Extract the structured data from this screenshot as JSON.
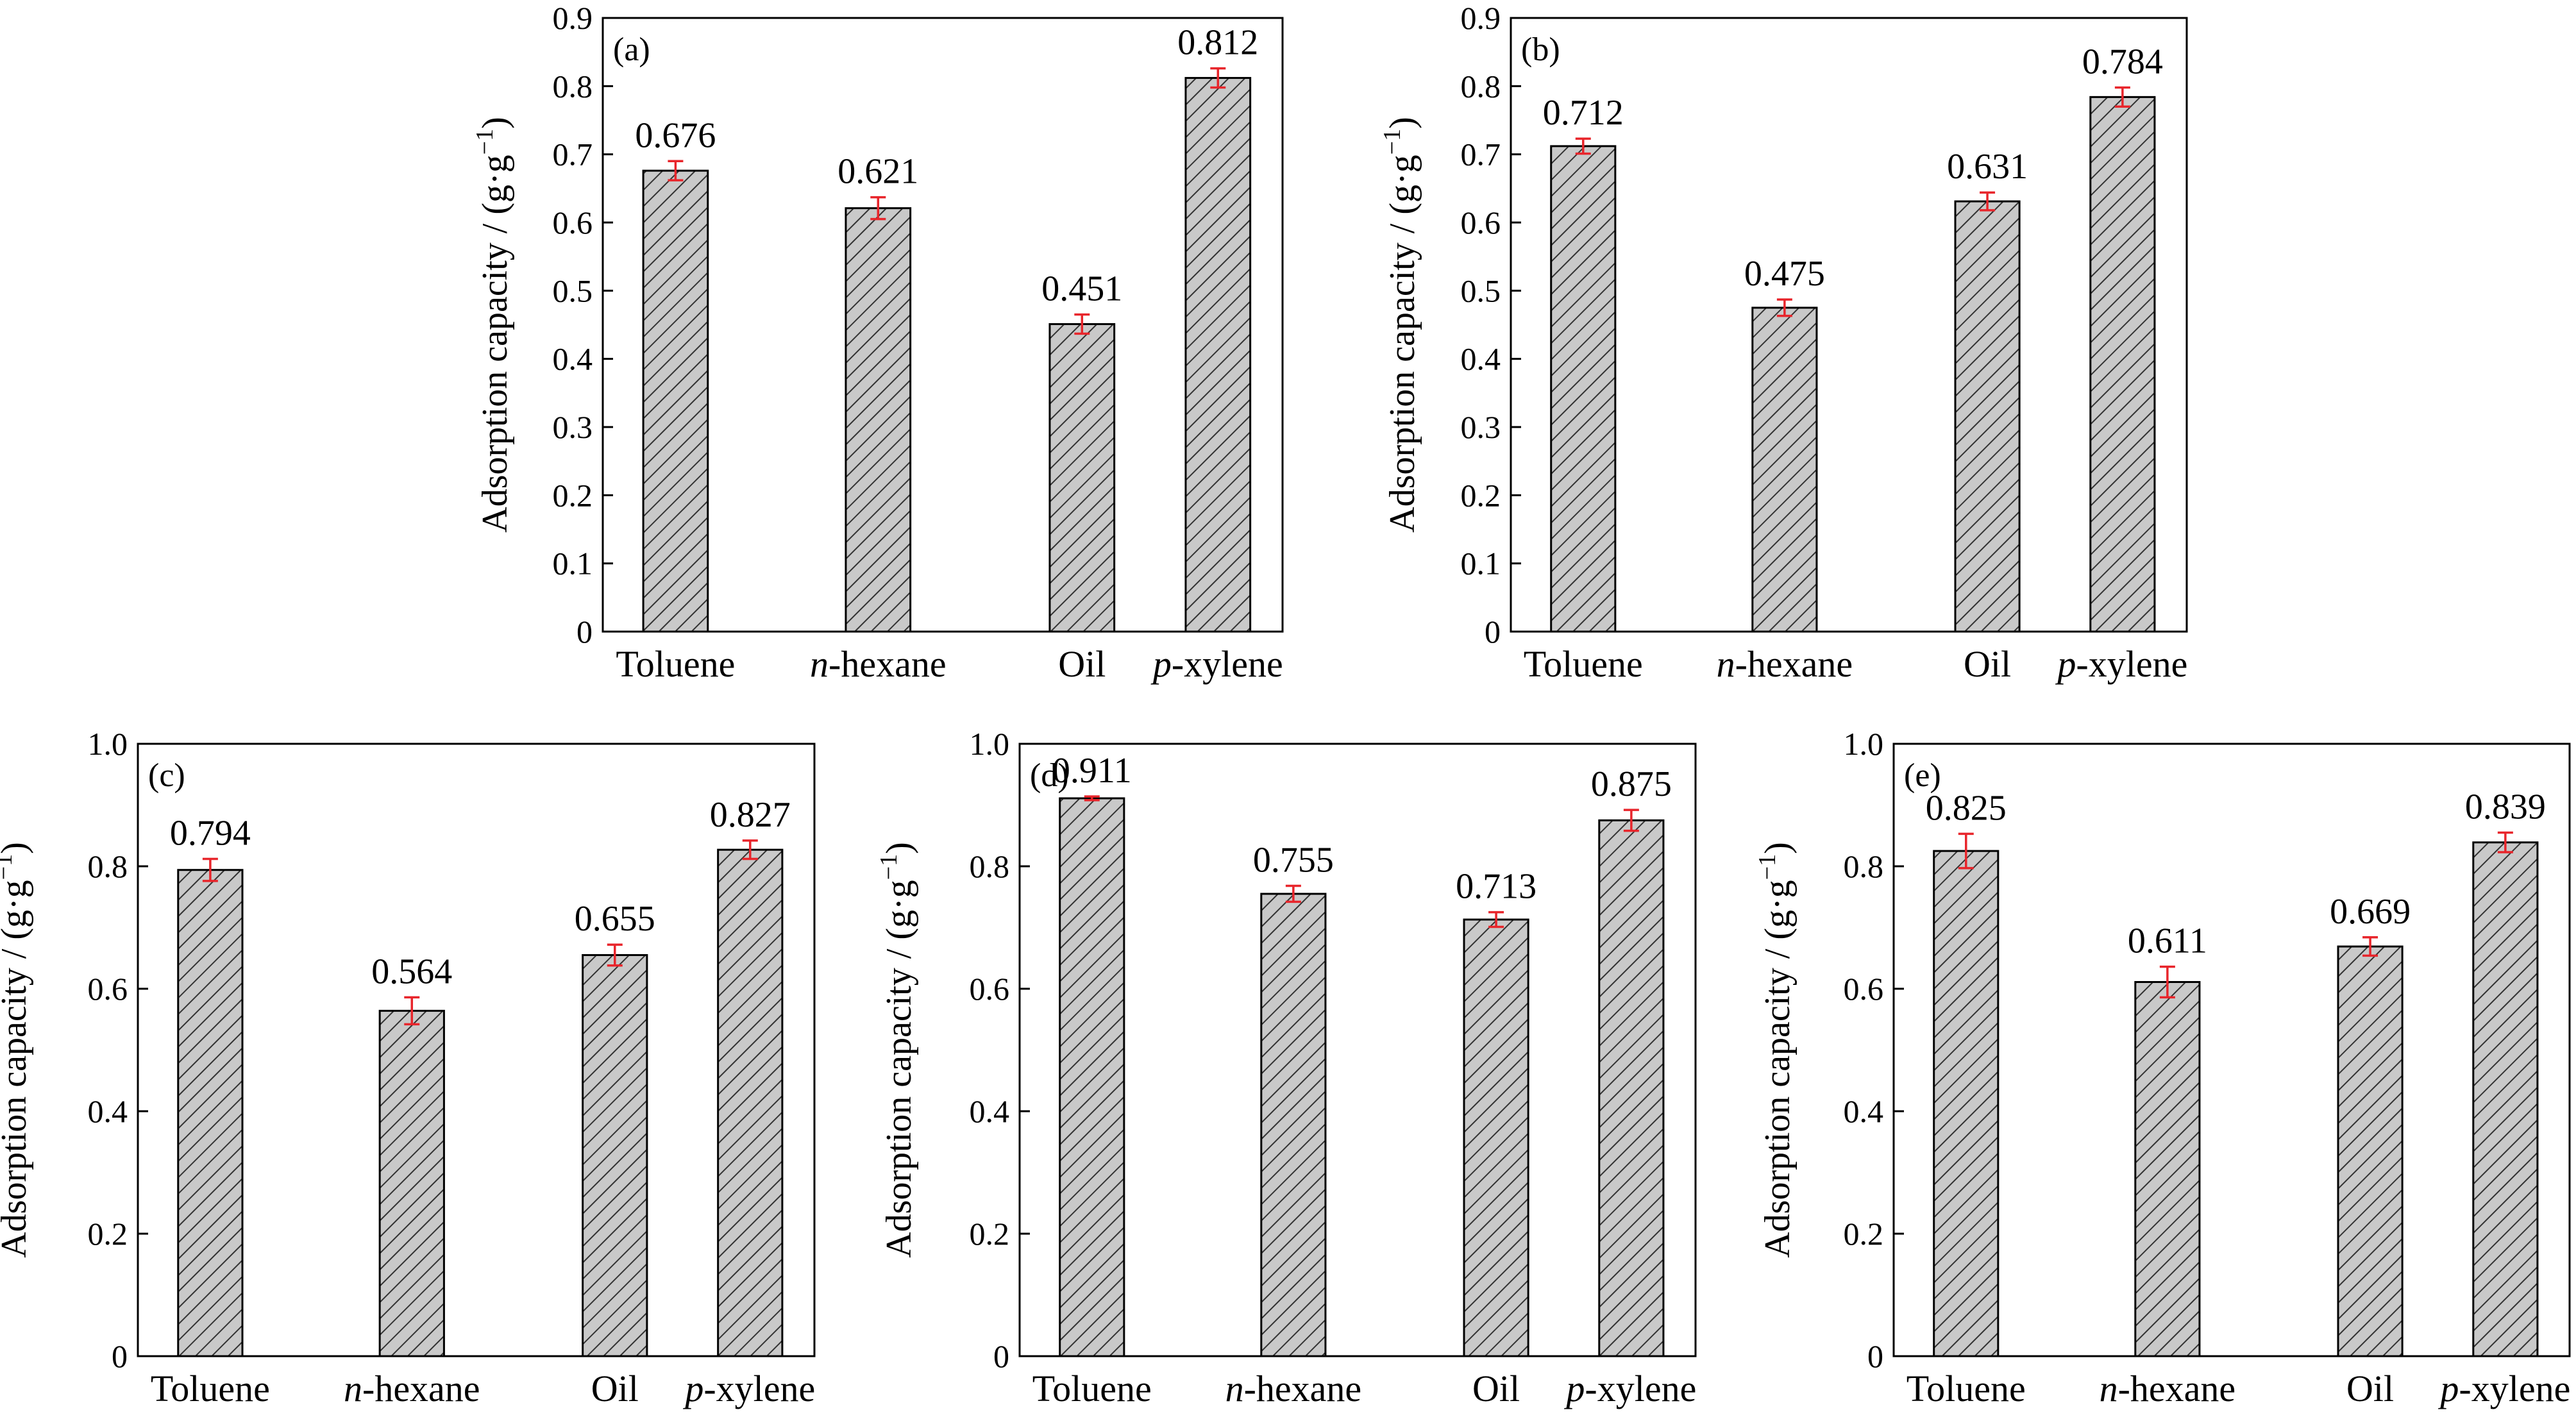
{
  "colors": {
    "bar_fill": "#c9c9c9",
    "hatch": "#333333",
    "error_bar": "#e8252b",
    "axis": "#000000"
  },
  "chart_data": [
    {
      "type": "bar",
      "panel": "(a)",
      "categories": [
        {
          "pre": "Toluene",
          "post": ""
        },
        {
          "pre": "n",
          "post": "-hexane",
          "italic_pre": true
        },
        {
          "pre": "Oil",
          "post": ""
        },
        {
          "pre": "p",
          "post": "-xylene",
          "italic_pre": true
        }
      ],
      "values": [
        0.676,
        0.621,
        0.451,
        0.812
      ],
      "value_labels": [
        "0.676",
        "0.621",
        "0.451",
        "0.812"
      ],
      "errors": [
        0.014,
        0.016,
        0.014,
        0.014
      ],
      "ylim": [
        0,
        0.9
      ],
      "yticks": [
        "0",
        "0.1",
        "0.2",
        "0.3",
        "0.4",
        "0.5",
        "0.6",
        "0.7",
        "0.8",
        "0.9"
      ],
      "ylabel": {
        "text": "Adsorption capacity / (g·g",
        "sup": "−1",
        "close": ")"
      }
    },
    {
      "type": "bar",
      "panel": "(b)",
      "categories": [
        {
          "pre": "Toluene",
          "post": ""
        },
        {
          "pre": "n",
          "post": "-hexane",
          "italic_pre": true
        },
        {
          "pre": "Oil",
          "post": ""
        },
        {
          "pre": "p",
          "post": "-xylene",
          "italic_pre": true
        }
      ],
      "values": [
        0.712,
        0.475,
        0.631,
        0.784
      ],
      "value_labels": [
        "0.712",
        "0.475",
        "0.631",
        "0.784"
      ],
      "errors": [
        0.011,
        0.012,
        0.013,
        0.014
      ],
      "ylim": [
        0,
        0.9
      ],
      "yticks": [
        "0",
        "0.1",
        "0.2",
        "0.3",
        "0.4",
        "0.5",
        "0.6",
        "0.7",
        "0.8",
        "0.9"
      ],
      "ylabel": {
        "text": "Adsorption capacity / (g·g",
        "sup": "−1",
        "close": ")"
      }
    },
    {
      "type": "bar",
      "panel": "(c)",
      "categories": [
        {
          "pre": "Toluene",
          "post": ""
        },
        {
          "pre": "n",
          "post": "-hexane",
          "italic_pre": true
        },
        {
          "pre": "Oil",
          "post": ""
        },
        {
          "pre": "p",
          "post": "-xylene",
          "italic_pre": true
        }
      ],
      "values": [
        0.794,
        0.564,
        0.655,
        0.827
      ],
      "value_labels": [
        "0.794",
        "0.564",
        "0.655",
        "0.827"
      ],
      "errors": [
        0.018,
        0.022,
        0.017,
        0.015
      ],
      "ylim": [
        0,
        1.0
      ],
      "yticks": [
        "0",
        "0.2",
        "0.4",
        "0.6",
        "0.8",
        "1.0"
      ],
      "ylabel": {
        "text": "Adsorption capacity / (g·g",
        "sup": "−1",
        "close": ")"
      }
    },
    {
      "type": "bar",
      "panel": "(d)",
      "categories": [
        {
          "pre": "Toluene",
          "post": ""
        },
        {
          "pre": "n",
          "post": "-hexane",
          "italic_pre": true
        },
        {
          "pre": "Oil",
          "post": ""
        },
        {
          "pre": "p",
          "post": "-xylene",
          "italic_pre": true
        }
      ],
      "values": [
        0.911,
        0.755,
        0.713,
        0.875
      ],
      "value_labels": [
        "0.911",
        "0.755",
        "0.713",
        "0.875"
      ],
      "errors": [
        0.003,
        0.013,
        0.012,
        0.017
      ],
      "ylim": [
        0,
        1.0
      ],
      "yticks": [
        "0",
        "0.2",
        "0.4",
        "0.6",
        "0.8",
        "1.0"
      ],
      "ylabel": {
        "text": "Adsorption capacity / (g·g",
        "sup": "−1",
        "close": ")"
      }
    },
    {
      "type": "bar",
      "panel": "(e)",
      "categories": [
        {
          "pre": "Toluene",
          "post": ""
        },
        {
          "pre": "n",
          "post": "-hexane",
          "italic_pre": true
        },
        {
          "pre": "Oil",
          "post": ""
        },
        {
          "pre": "p",
          "post": "-xylene",
          "italic_pre": true
        }
      ],
      "values": [
        0.825,
        0.611,
        0.669,
        0.839
      ],
      "value_labels": [
        "0.825",
        "0.611",
        "0.669",
        "0.839"
      ],
      "errors": [
        0.028,
        0.025,
        0.015,
        0.016
      ],
      "ylim": [
        0,
        1.0
      ],
      "yticks": [
        "0",
        "0.2",
        "0.4",
        "0.6",
        "0.8",
        "1.0"
      ],
      "ylabel": {
        "text": "Adsorption capacity / (g·g",
        "sup": "−1",
        "close": ")"
      }
    }
  ]
}
